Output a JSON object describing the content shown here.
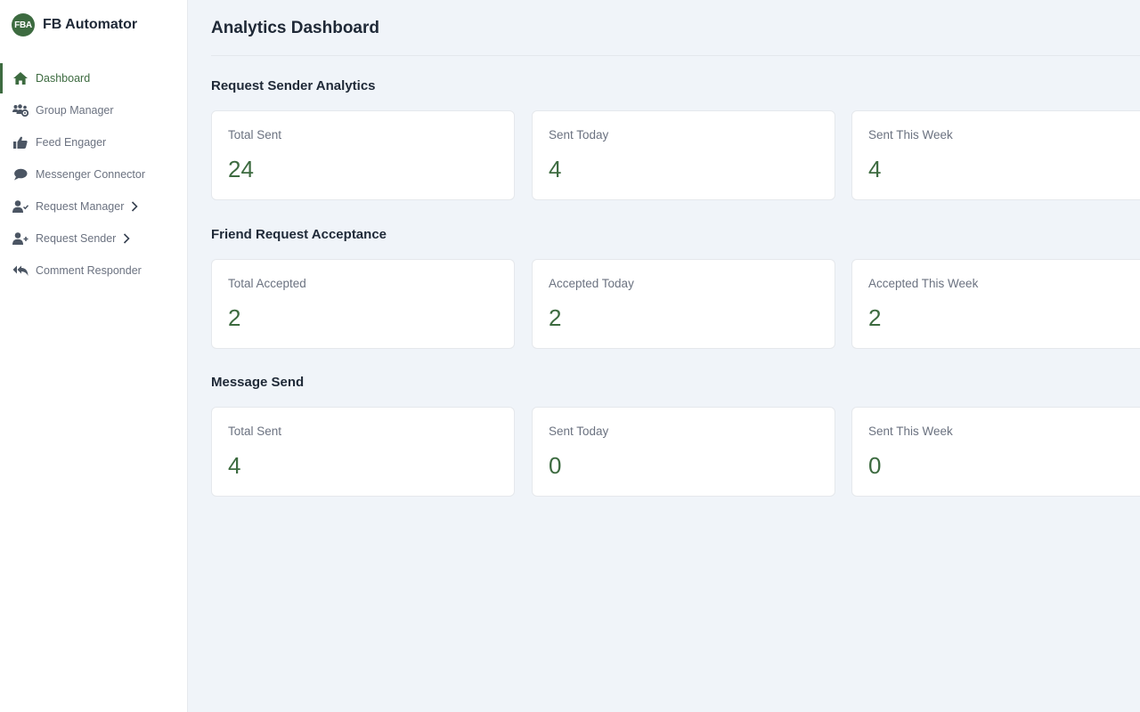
{
  "brand": {
    "logo_text": "FBA",
    "name": "FB Automator"
  },
  "colors": {
    "accent": "#3d6b40",
    "icon": "#4b5563",
    "muted_text": "#6b7280",
    "background": "#f0f4f9"
  },
  "sidebar": {
    "items": [
      {
        "label": "Dashboard",
        "icon": "home-icon",
        "active": true
      },
      {
        "label": "Group Manager",
        "icon": "users-gear-icon"
      },
      {
        "label": "Feed Engager",
        "icon": "thumbs-up-icon"
      },
      {
        "label": "Messenger Connector",
        "icon": "chat-bubble-icon"
      },
      {
        "label": "Request Manager",
        "icon": "user-check-icon",
        "has_submenu": true
      },
      {
        "label": "Request Sender",
        "icon": "user-plus-icon",
        "has_submenu": true
      },
      {
        "label": "Comment Responder",
        "icon": "reply-all-icon"
      }
    ]
  },
  "main": {
    "title": "Analytics Dashboard",
    "sections": [
      {
        "title": "Request Sender Analytics",
        "cards": [
          {
            "label": "Total Sent",
            "value": "24"
          },
          {
            "label": "Sent Today",
            "value": "4"
          },
          {
            "label": "Sent This Week",
            "value": "4"
          }
        ]
      },
      {
        "title": "Friend Request Acceptance",
        "cards": [
          {
            "label": "Total Accepted",
            "value": "2"
          },
          {
            "label": "Accepted Today",
            "value": "2"
          },
          {
            "label": "Accepted This Week",
            "value": "2"
          }
        ]
      },
      {
        "title": "Message Send",
        "cards": [
          {
            "label": "Total Sent",
            "value": "4"
          },
          {
            "label": "Sent Today",
            "value": "0"
          },
          {
            "label": "Sent This Week",
            "value": "0"
          }
        ]
      }
    ]
  }
}
